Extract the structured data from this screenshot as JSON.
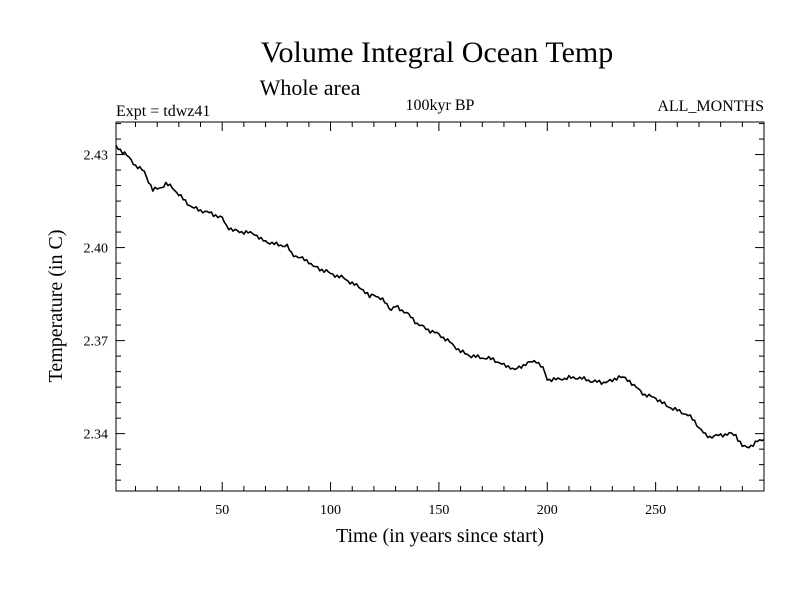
{
  "chart_data": {
    "type": "line",
    "title": "Volume Integral Ocean Temp",
    "subtitle": "Whole area",
    "header_left": "Expt = tdwz41",
    "header_center": "100kyr BP",
    "header_right": "ALL_MONTHS",
    "xlabel": "Time (in years since start)",
    "ylabel": "Temperature (in C)",
    "xlim": [
      1,
      300
    ],
    "ylim": [
      2.3215,
      2.4405
    ],
    "x_ticks": [
      50,
      100,
      150,
      200,
      250
    ],
    "x_tick_labels": [
      "50",
      "100",
      "150",
      "200",
      "250"
    ],
    "y_ticks": [
      2.34,
      2.37,
      2.4,
      2.43
    ],
    "y_tick_labels": [
      "2.34",
      "2.37",
      "2.40",
      "2.43"
    ],
    "grid": false,
    "series": [
      {
        "name": "Volume integral ocean temperature",
        "color": "#000000",
        "x": [
          1,
          5,
          10,
          14,
          18,
          22,
          24,
          27,
          30,
          33,
          36,
          40,
          45,
          50,
          52,
          55,
          60,
          65,
          68,
          70,
          75,
          80,
          82,
          85,
          90,
          92,
          95,
          98,
          100,
          105,
          110,
          115,
          118,
          120,
          125,
          128,
          130,
          135,
          140,
          145,
          150,
          155,
          160,
          165,
          170,
          175,
          180,
          183,
          185,
          190,
          195,
          198,
          200,
          205,
          210,
          215,
          220,
          225,
          230,
          233,
          235,
          238,
          240,
          245,
          250,
          255,
          260,
          265,
          268,
          270,
          273,
          275,
          280,
          284,
          287,
          290,
          292,
          295,
          297,
          300
        ],
        "y": [
          2.4325,
          2.4305,
          2.4265,
          2.4245,
          2.4185,
          2.4195,
          2.4205,
          2.4195,
          2.417,
          2.415,
          2.413,
          2.412,
          2.411,
          2.4095,
          2.407,
          2.4055,
          2.405,
          2.4045,
          2.4025,
          2.402,
          2.401,
          2.4005,
          2.398,
          2.397,
          2.3955,
          2.394,
          2.393,
          2.3925,
          2.3915,
          2.3905,
          2.3885,
          2.3865,
          2.384,
          2.385,
          2.3825,
          2.38,
          2.381,
          2.379,
          2.3755,
          2.3735,
          2.372,
          2.3695,
          2.3665,
          2.365,
          2.3645,
          2.364,
          2.362,
          2.3615,
          2.3605,
          2.3625,
          2.3635,
          2.361,
          2.3575,
          2.3575,
          2.358,
          2.358,
          2.357,
          2.3565,
          2.357,
          2.3585,
          2.358,
          2.357,
          2.3555,
          2.3525,
          2.3515,
          2.349,
          2.3475,
          2.346,
          2.344,
          2.342,
          2.3395,
          2.339,
          2.3395,
          2.34,
          2.3395,
          2.336,
          2.3355,
          2.3365,
          2.3375,
          2.338
        ]
      }
    ]
  }
}
